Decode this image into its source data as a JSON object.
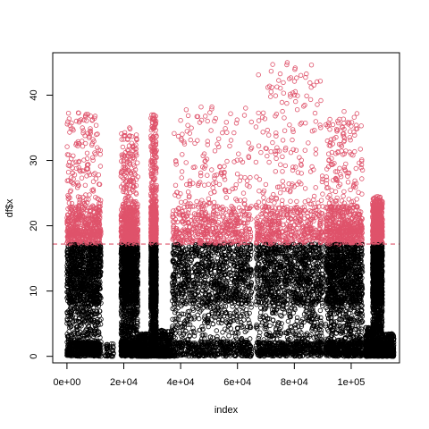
{
  "chart_data": {
    "type": "scatter",
    "title": "",
    "xlabel": "index",
    "ylabel": "df$x",
    "xlim": [
      -5000,
      117000
    ],
    "ylim": [
      -1,
      46.5
    ],
    "x_ticks": [
      0,
      20000,
      40000,
      60000,
      80000,
      100000
    ],
    "x_tick_labels": [
      "0e+00",
      "2e+04",
      "4e+04",
      "6e+04",
      "8e+04",
      "1e+05"
    ],
    "y_ticks": [
      0,
      10,
      20,
      30,
      40
    ],
    "y_tick_labels": [
      "0",
      "10",
      "20",
      "30",
      "40"
    ],
    "threshold": 17.2,
    "grid": false,
    "legend": "none",
    "colors": {
      "below": "#000000",
      "above": "#DF536B",
      "threshold_line": "#DF536B"
    },
    "series": [
      {
        "point_style": "open-circle",
        "segments": [
          {
            "x_range": [
              0,
              12000
            ],
            "y_range": [
              0,
              19.5
            ],
            "density": "high",
            "x_peak": 4000,
            "max_value": 37.3
          },
          {
            "x_range": [
              13500,
              16500
            ],
            "y_range": [
              0,
              2
            ],
            "density": "sparse"
          },
          {
            "x_range": [
              19000,
              25000
            ],
            "y_range": [
              0,
              19
            ],
            "density": "high",
            "max_value": 35
          },
          {
            "x_range": [
              25000,
              29000
            ],
            "y_range": [
              0,
              3.5
            ],
            "density": "medium"
          },
          {
            "x_range": [
              29500,
              31500
            ],
            "y_range": [
              0,
              37
            ],
            "density": "high",
            "max_value": 37
          },
          {
            "x_range": [
              32000,
              37000
            ],
            "y_range": [
              0,
              4
            ],
            "density": "medium"
          },
          {
            "x_range": [
              37000,
              65000
            ],
            "y_range": [
              0,
              19
            ],
            "density": "high",
            "max_value": 38.2
          },
          {
            "x_range": [
              66500,
              90000
            ],
            "y_range": [
              0,
              19
            ],
            "density": "high",
            "x_peak": 77500,
            "max_value": 45
          },
          {
            "x_range": [
              91000,
              104000
            ],
            "y_range": [
              0,
              19.5
            ],
            "density": "high",
            "max_value": 37.5
          },
          {
            "x_range": [
              105000,
              108000
            ],
            "y_range": [
              0,
              4.5
            ],
            "density": "medium"
          },
          {
            "x_range": [
              107500,
              111000
            ],
            "y_range": [
              0,
              19.5
            ],
            "density": "high",
            "max_value": 24.5
          },
          {
            "x_range": [
              111000,
              115000
            ],
            "y_range": [
              0,
              3.5
            ],
            "density": "medium"
          }
        ]
      }
    ]
  }
}
